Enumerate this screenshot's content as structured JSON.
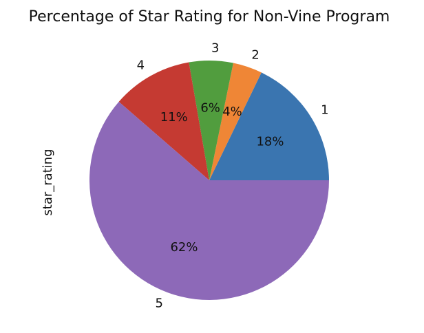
{
  "chart_data": {
    "type": "pie",
    "title": "Percentage of Star Rating for Non-Vine Program",
    "ylabel": "star_rating",
    "categories": [
      "1",
      "2",
      "3",
      "4",
      "5"
    ],
    "values": [
      18,
      4,
      6,
      11,
      62
    ],
    "value_labels": [
      "18%",
      "4%",
      "6%",
      "11%",
      "62%"
    ],
    "colors": [
      "#3a75b0",
      "#ef8636",
      "#519d3e",
      "#c53a32",
      "#8d69b8"
    ],
    "start_angle_deg": 0,
    "direction": "counterclockwise",
    "legend": "none"
  }
}
